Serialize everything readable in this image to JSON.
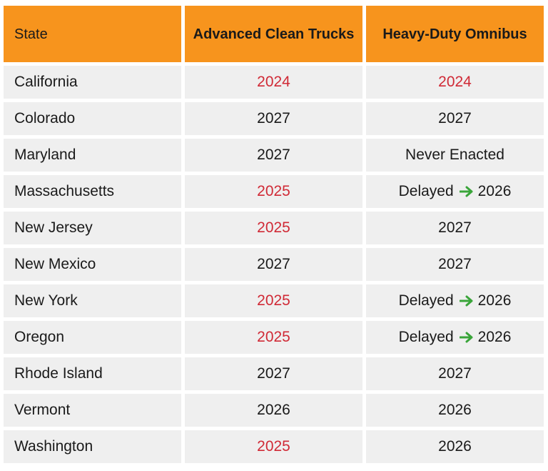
{
  "headers": {
    "state": "State",
    "act": "Advanced Clean Trucks",
    "omnibus": "Heavy-Duty Omnibus"
  },
  "rows": [
    {
      "state": "California",
      "act": "2024",
      "act_highlight": true,
      "omnibus": "2024",
      "omnibus_highlight": true
    },
    {
      "state": "Colorado",
      "act": "2027",
      "act_highlight": false,
      "omnibus": "2027"
    },
    {
      "state": "Maryland",
      "act": "2027",
      "act_highlight": false,
      "omnibus": "Never Enacted"
    },
    {
      "state": "Massachusetts",
      "act": "2025",
      "act_highlight": true,
      "omnibus_delayed": "Delayed",
      "omnibus_year": "2026"
    },
    {
      "state": "New Jersey",
      "act": "2025",
      "act_highlight": true,
      "omnibus": "2027"
    },
    {
      "state": "New Mexico",
      "act": "2027",
      "act_highlight": false,
      "omnibus": "2027"
    },
    {
      "state": "New York",
      "act": "2025",
      "act_highlight": true,
      "omnibus_delayed": "Delayed",
      "omnibus_year": "2026"
    },
    {
      "state": "Oregon",
      "act": "2025",
      "act_highlight": true,
      "omnibus_delayed": "Delayed",
      "omnibus_year": "2026"
    },
    {
      "state": "Rhode Island",
      "act": "2027",
      "act_highlight": false,
      "omnibus": "2027"
    },
    {
      "state": "Vermont",
      "act": "2026",
      "act_highlight": false,
      "omnibus": "2026"
    },
    {
      "state": "Washington",
      "act": "2025",
      "act_highlight": true,
      "omnibus": "2026"
    }
  ],
  "colors": {
    "header_bg": "#f7941d",
    "row_bg": "#efefef",
    "highlight_text": "#d02a36",
    "arrow": "#3aa53a"
  },
  "icons": {
    "delay_arrow": "right-arrow-icon"
  }
}
